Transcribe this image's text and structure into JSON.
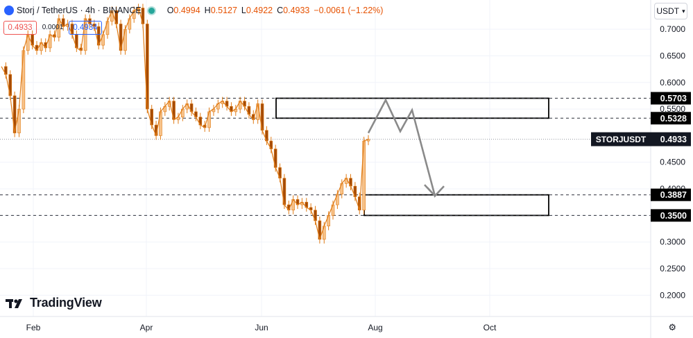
{
  "header": {
    "symbol": "Storj / TetherUS · 4h · BINANCE",
    "o_label": "O",
    "o_value": "0.4994",
    "h_label": "H",
    "h_value": "0.5127",
    "l_label": "L",
    "l_value": "0.4922",
    "c_label": "C",
    "c_value": "0.4933",
    "change": "−0.0061 (−1.22%)"
  },
  "price_boxes": {
    "bid": "0.4933",
    "spread": "0.0001",
    "ask": "0.4934"
  },
  "currency_button": "USDT",
  "branding": "TradingView",
  "colors": {
    "up": "#26a69a",
    "down": "#ef5350",
    "candle": "#e07b15",
    "wick": "#e07b15",
    "accent": "#2962ff"
  },
  "chart_data": {
    "type": "line",
    "x_labels": [
      "Feb",
      "Apr",
      "Jun",
      "Aug",
      "Oct"
    ],
    "y_ticks": [
      "0.7000",
      "0.6500",
      "0.6000",
      "0.5500",
      "0.4500",
      "0.4000",
      "0.3500",
      "0.3000",
      "0.2500",
      "0.2000"
    ],
    "ylim": [
      0.16,
      0.755
    ],
    "price_line": {
      "label": "STORJUSDT",
      "value": 0.4933,
      "text": "0.4933"
    },
    "levels": [
      {
        "value": 0.5703,
        "text": "0.5703"
      },
      {
        "value": 0.5328,
        "text": "0.5328"
      },
      {
        "value": 0.3887,
        "text": "0.3887"
      },
      {
        "value": 0.35,
        "text": "0.3500"
      }
    ],
    "zones": [
      {
        "top": 0.5703,
        "bottom": 0.5328
      },
      {
        "top": 0.3887,
        "bottom": 0.35
      }
    ],
    "projection": [
      0.505,
      0.567,
      0.508,
      0.548,
      0.3867,
      0.405
    ],
    "series": [
      {
        "values": [
          0.63,
          0.615,
          0.575,
          0.505,
          0.55,
          0.66,
          0.69,
          0.67,
          0.66,
          0.675,
          0.665,
          0.69,
          0.685,
          0.72,
          0.705,
          0.71,
          0.69,
          0.665,
          0.66,
          0.72,
          0.71,
          0.705,
          0.67,
          0.69,
          0.715,
          0.735,
          0.71,
          0.66,
          0.7,
          0.72,
          0.735,
          0.74,
          0.71,
          0.55,
          0.52,
          0.5,
          0.545,
          0.555,
          0.565,
          0.53,
          0.535,
          0.55,
          0.56,
          0.545,
          0.535,
          0.52,
          0.515,
          0.545,
          0.55,
          0.56,
          0.565,
          0.555,
          0.545,
          0.55,
          0.565,
          0.555,
          0.54,
          0.53,
          0.56,
          0.51,
          0.49,
          0.475,
          0.44,
          0.42,
          0.37,
          0.36,
          0.38,
          0.37,
          0.375,
          0.365,
          0.36,
          0.34,
          0.305,
          0.33,
          0.35,
          0.37,
          0.39,
          0.41,
          0.42,
          0.405,
          0.385,
          0.36,
          0.49,
          0.4933
        ]
      }
    ]
  }
}
